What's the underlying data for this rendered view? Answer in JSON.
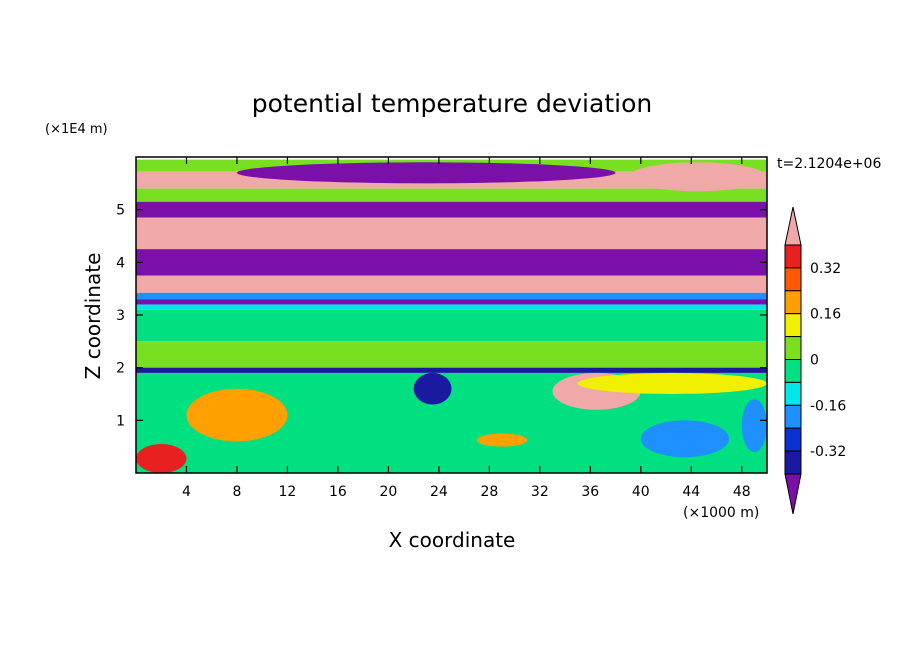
{
  "chart_data": {
    "type": "heatmap",
    "title": "potential temperature deviation",
    "xlabel": "X coordinate",
    "ylabel": "Z coordinate",
    "x_unit": "(×1000 m)",
    "y_unit": "(×1E4 m)",
    "time_label": "t=2.1204e+06",
    "xlim": [
      0,
      50
    ],
    "ylim": [
      0,
      6
    ],
    "x_ticks": [
      "4",
      "8",
      "12",
      "16",
      "20",
      "24",
      "28",
      "32",
      "36",
      "40",
      "44",
      "48"
    ],
    "x_tick_values": [
      4,
      8,
      12,
      16,
      20,
      24,
      28,
      32,
      36,
      40,
      44,
      48
    ],
    "y_ticks": [
      "1",
      "2",
      "3",
      "4",
      "5"
    ],
    "y_tick_values": [
      1,
      2,
      3,
      4,
      5
    ],
    "colorbar": {
      "labels": [
        "0.32",
        "0.16",
        "0",
        "-0.16",
        "-0.32"
      ],
      "label_values": [
        0.32,
        0.16,
        0,
        -0.16,
        -0.32
      ],
      "levels": [
        -0.4,
        -0.32,
        -0.24,
        -0.16,
        -0.08,
        0,
        0.08,
        0.16,
        0.24,
        0.32,
        0.4
      ],
      "colors": [
        "#7a10a8",
        "#1a1aa0",
        "#0a32d2",
        "#1e90ff",
        "#00e8e8",
        "#00e080",
        "#78e020",
        "#f0f000",
        "#ffa000",
        "#ff5a00",
        "#e82020",
        "#f0a8a8"
      ]
    },
    "bands": [
      {
        "z": [
          5.72,
          5.95
        ],
        "value": 0.05
      },
      {
        "z": [
          5.4,
          5.72
        ],
        "value": 0.45
      },
      {
        "z": [
          5.15,
          5.4
        ],
        "value": 0.0
      },
      {
        "z": [
          4.85,
          5.15
        ],
        "value": -0.45
      },
      {
        "z": [
          4.25,
          4.85
        ],
        "value": 0.45
      },
      {
        "z": [
          3.75,
          4.25
        ],
        "value": -0.45
      },
      {
        "z": [
          3.42,
          3.75
        ],
        "value": 0.45
      },
      {
        "z": [
          3.3,
          3.42
        ],
        "value": -0.2
      },
      {
        "z": [
          3.2,
          3.3
        ],
        "value": -0.45
      },
      {
        "z": [
          3.1,
          3.2
        ],
        "value": -0.1
      },
      {
        "z": [
          2.5,
          3.1
        ],
        "value": -0.02
      },
      {
        "z": [
          2.0,
          2.5
        ],
        "value": 0.04
      },
      {
        "z": [
          1.9,
          2.0
        ],
        "value": -0.35
      },
      {
        "z": [
          0.0,
          1.9
        ],
        "value": -0.07
      }
    ],
    "features": [
      {
        "x": [
          8,
          38
        ],
        "z": [
          5.5,
          5.9
        ],
        "value": -0.45
      },
      {
        "x": [
          39,
          50
        ],
        "z": [
          5.35,
          5.9
        ],
        "value": 0.45
      },
      {
        "x": [
          0,
          4
        ],
        "z": [
          0.0,
          0.55
        ],
        "value": 0.38
      },
      {
        "x": [
          4,
          12
        ],
        "z": [
          0.6,
          1.6
        ],
        "value": 0.2
      },
      {
        "x": [
          27,
          31
        ],
        "z": [
          0.5,
          0.75
        ],
        "value": 0.22
      },
      {
        "x": [
          33,
          40
        ],
        "z": [
          1.2,
          1.9
        ],
        "value": 0.45
      },
      {
        "x": [
          22,
          25
        ],
        "z": [
          1.3,
          1.9
        ],
        "value": -0.4
      },
      {
        "x": [
          40,
          47
        ],
        "z": [
          0.3,
          1.0
        ],
        "value": -0.22
      },
      {
        "x": [
          48,
          50
        ],
        "z": [
          0.4,
          1.4
        ],
        "value": -0.2
      },
      {
        "x": [
          35,
          50
        ],
        "z": [
          1.5,
          1.9
        ],
        "value": 0.08
      }
    ]
  }
}
